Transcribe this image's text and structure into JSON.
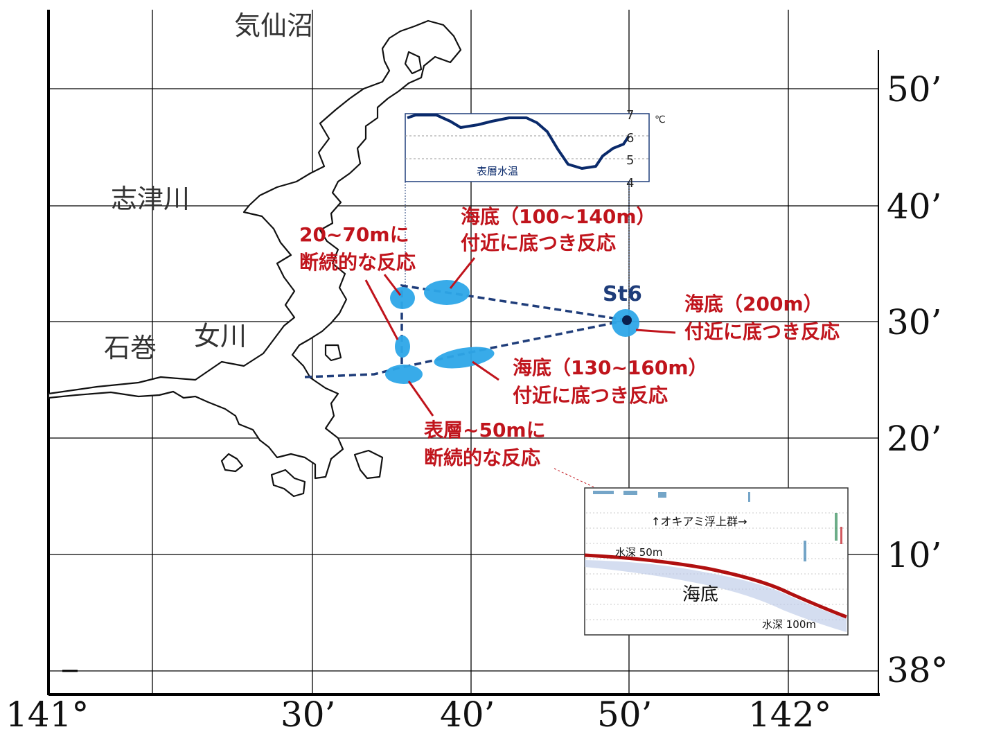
{
  "places": {
    "kesennuma": "気仙沼",
    "shizugawa": "志津川",
    "onagawa": "女川",
    "ishinomaki": "石巻"
  },
  "axes": {
    "lat_labels": [
      "50’",
      "40’",
      "30’",
      "20’",
      "10’",
      "38°"
    ],
    "lon_labels": [
      "141°",
      "30’",
      "40’",
      "50’",
      "142°"
    ]
  },
  "station": {
    "name": "St6"
  },
  "temperature_chart": {
    "title": "表層水温",
    "unit": "℃",
    "ticks": [
      "7",
      "6",
      "5",
      "4"
    ],
    "line_color": "#0a2a6b"
  },
  "annotations": {
    "a1": {
      "line1": "20~70mに",
      "line2": "断続的な反応"
    },
    "a2": {
      "line1": "海底（100~140m）",
      "line2": "付近に底つき反応"
    },
    "a3": {
      "line1": "海底（200m）",
      "line2": "付近に底つき反応"
    },
    "a4": {
      "line1": "海底（130~160m）",
      "line2": "付近に底つき反応"
    },
    "a5": {
      "line1": "表層~50mに",
      "line2": "断続的な反応"
    }
  },
  "echogram": {
    "krill_label": "↑オキアミ浮上群→",
    "depth50": "水深 50m",
    "seabed": "海底",
    "depth100": "水深 100m"
  },
  "colors": {
    "annotation_red": "#c0141c",
    "school_blue": "#2ea7e8",
    "track_navy": "#1f3d7a",
    "seabed_red": "#b01010"
  }
}
